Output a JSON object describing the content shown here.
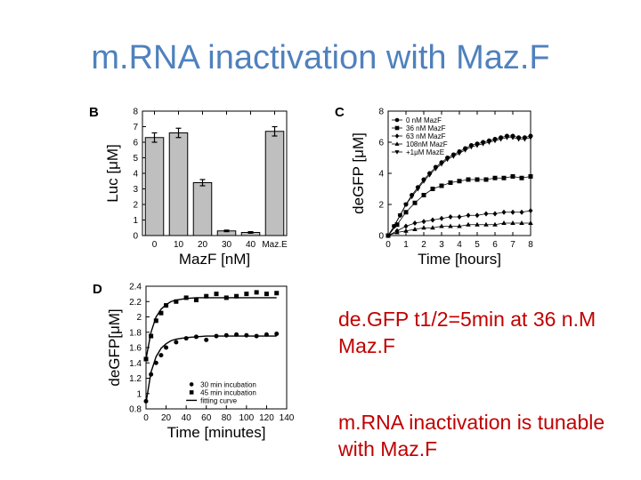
{
  "slide": {
    "title": "m.RNA inactivation with Maz.F",
    "note_1": "de.GFP t1/2=5min at 36 n.M Maz.F",
    "note_2": "m.RNA inactivation is tunable with Maz.F"
  },
  "chart_data": [
    {
      "panel": "B",
      "type": "bar",
      "categories": [
        "0",
        "10",
        "20",
        "30",
        "40",
        "Maz.E"
      ],
      "values": [
        6.3,
        6.6,
        3.4,
        0.3,
        0.2,
        6.7
      ],
      "errors": [
        0.3,
        0.3,
        0.2,
        0.05,
        0.05,
        0.3
      ],
      "xlabel": "MazF [nM]",
      "ylabel": "Luc [μM]",
      "ylim": [
        0,
        8
      ],
      "yticks": [
        0,
        1,
        2,
        3,
        4,
        5,
        6,
        7,
        8
      ],
      "bar_color": "#bfbfbf"
    },
    {
      "panel": "C",
      "type": "line",
      "xlabel": "Time [hours]",
      "ylabel": "deGFP [μM]",
      "xlim": [
        0,
        8
      ],
      "ylim": [
        0,
        8
      ],
      "xticks": [
        0,
        1,
        2,
        3,
        4,
        5,
        6,
        7,
        8
      ],
      "yticks": [
        0,
        2,
        4,
        6,
        8
      ],
      "series": [
        {
          "name": "0     nM MazF",
          "marker": "circle",
          "x": [
            0.0,
            0.33,
            0.67,
            1.0,
            1.33,
            1.67,
            2.0,
            2.33,
            2.67,
            3.0,
            3.33,
            3.67,
            4.0,
            4.33,
            4.67,
            5.0,
            5.33,
            5.67,
            6.0,
            6.33,
            6.67,
            7.0,
            7.33,
            7.67,
            8.0
          ],
          "y": [
            0.0,
            0.6,
            1.3,
            2.0,
            2.6,
            3.1,
            3.6,
            4.0,
            4.4,
            4.7,
            5.0,
            5.2,
            5.4,
            5.6,
            5.8,
            5.9,
            6.0,
            6.1,
            6.2,
            6.3,
            6.4,
            6.4,
            6.3,
            6.3,
            6.4
          ]
        },
        {
          "name": "36   nM MazF",
          "marker": "square",
          "x": [
            0.0,
            0.5,
            1.0,
            1.5,
            2.0,
            2.5,
            3.0,
            3.5,
            4.0,
            4.5,
            5.0,
            5.5,
            6.0,
            6.5,
            7.0,
            7.5,
            8.0
          ],
          "y": [
            0.0,
            0.7,
            1.5,
            2.1,
            2.6,
            3.0,
            3.2,
            3.4,
            3.5,
            3.6,
            3.6,
            3.6,
            3.7,
            3.7,
            3.8,
            3.7,
            3.8
          ]
        },
        {
          "name": "63   nM MazF",
          "marker": "diamond",
          "x": [
            0.0,
            0.5,
            1.0,
            1.5,
            2.0,
            2.5,
            3.0,
            3.5,
            4.0,
            4.5,
            5.0,
            5.5,
            6.0,
            6.5,
            7.0,
            7.5,
            8.0
          ],
          "y": [
            0.0,
            0.3,
            0.6,
            0.8,
            0.9,
            1.0,
            1.1,
            1.2,
            1.2,
            1.3,
            1.3,
            1.4,
            1.4,
            1.5,
            1.5,
            1.5,
            1.6
          ]
        },
        {
          "name": "108nM MazF",
          "marker": "triangle",
          "x": [
            0.0,
            0.5,
            1.0,
            1.5,
            2.0,
            2.5,
            3.0,
            3.5,
            4.0,
            4.5,
            5.0,
            5.5,
            6.0,
            6.5,
            7.0,
            7.5,
            8.0
          ],
          "y": [
            0.0,
            0.2,
            0.3,
            0.4,
            0.5,
            0.5,
            0.6,
            0.6,
            0.6,
            0.7,
            0.7,
            0.7,
            0.7,
            0.8,
            0.8,
            0.8,
            0.8
          ]
        },
        {
          "name": "+1μM   MazE",
          "marker": "triangle-down",
          "x": [
            0.0,
            0.33,
            0.67,
            1.0,
            1.33,
            1.67,
            2.0,
            2.33,
            2.67,
            3.0,
            3.33,
            3.67,
            4.0,
            4.33,
            4.67,
            5.0,
            5.33,
            5.67,
            6.0,
            6.33,
            6.67,
            7.0,
            7.33,
            7.67,
            8.0
          ],
          "y": [
            0.0,
            0.6,
            1.3,
            2.0,
            2.5,
            3.0,
            3.5,
            3.9,
            4.3,
            4.6,
            4.9,
            5.1,
            5.3,
            5.5,
            5.7,
            5.8,
            5.9,
            6.0,
            6.1,
            6.2,
            6.3,
            6.3,
            6.2,
            6.2,
            6.3
          ]
        }
      ]
    },
    {
      "panel": "D",
      "type": "scatter",
      "xlabel": "Time [minutes]",
      "ylabel": "deGFP[μM]",
      "xlim": [
        0,
        140
      ],
      "ylim": [
        0.8,
        2.4
      ],
      "xticks": [
        0,
        20,
        40,
        60,
        80,
        100,
        120,
        140
      ],
      "yticks": [
        0.8,
        1,
        1.2,
        1.4,
        1.6,
        1.8,
        2,
        2.2,
        2.4
      ],
      "series": [
        {
          "name": "30 min incubation",
          "marker": "circle",
          "x": [
            0,
            5,
            10,
            15,
            20,
            30,
            40,
            50,
            60,
            70,
            80,
            90,
            100,
            110,
            120,
            130
          ],
          "y": [
            0.9,
            1.25,
            1.4,
            1.5,
            1.6,
            1.67,
            1.72,
            1.74,
            1.7,
            1.75,
            1.76,
            1.77,
            1.76,
            1.75,
            1.77,
            1.78
          ]
        },
        {
          "name": "45 min incubation",
          "marker": "square",
          "x": [
            0,
            5,
            10,
            15,
            20,
            30,
            40,
            50,
            60,
            70,
            80,
            90,
            100,
            110,
            120,
            130
          ],
          "y": [
            1.45,
            1.75,
            1.95,
            2.05,
            2.15,
            2.2,
            2.25,
            2.22,
            2.27,
            2.3,
            2.25,
            2.27,
            2.3,
            2.32,
            2.3,
            2.31
          ]
        },
        {
          "name": "fitting curve",
          "type": "line",
          "x": [
            0,
            5,
            10,
            15,
            20,
            25,
            30,
            40,
            50,
            60,
            80,
            100,
            120,
            130
          ],
          "y": [
            1.45,
            1.8,
            2.0,
            2.1,
            2.16,
            2.2,
            2.22,
            2.24,
            2.25,
            2.25,
            2.25,
            2.25,
            2.25,
            2.25
          ]
        },
        {
          "name": "fitting curve",
          "type": "line",
          "x": [
            0,
            5,
            10,
            15,
            20,
            25,
            30,
            40,
            50,
            60,
            80,
            100,
            120,
            130
          ],
          "y": [
            0.88,
            1.28,
            1.48,
            1.59,
            1.65,
            1.69,
            1.71,
            1.73,
            1.74,
            1.75,
            1.75,
            1.75,
            1.75,
            1.75
          ]
        }
      ]
    }
  ]
}
